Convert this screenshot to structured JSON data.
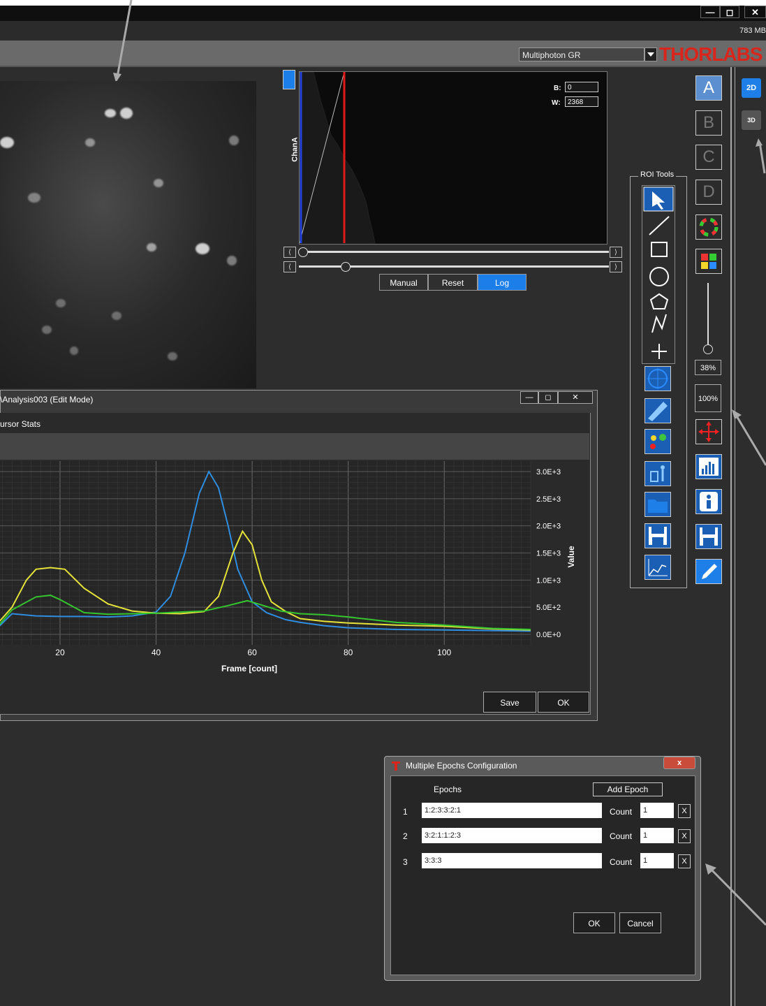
{
  "app": {
    "memory": "783 MB",
    "modality": "Multiphoton GR",
    "logo": "THORLABS",
    "window_controls": {
      "minimize": "—",
      "restore": "◻",
      "close": "✕"
    }
  },
  "histogram": {
    "channel_label": "ChanA",
    "black_label": "B:",
    "black_value": "0",
    "white_label": "W:",
    "white_value": "2368",
    "buttons": {
      "manual": "Manual",
      "reset": "Reset",
      "log": "Log"
    }
  },
  "roi_tools": {
    "title": "ROI Tools"
  },
  "channels": {
    "a": "A",
    "b": "B",
    "c": "C",
    "d": "D"
  },
  "zoom": {
    "slider_pct": "38%",
    "full_pct": "100%"
  },
  "view_modes": {
    "two_d": "2D",
    "three_d": "3D"
  },
  "analysis_window": {
    "title": "\\Analysis003  (Edit Mode)",
    "tab": "ursor Stats",
    "save": "Save",
    "ok": "OK",
    "controls": {
      "min": "—",
      "max": "◻",
      "close": "✕"
    }
  },
  "chart_data": {
    "type": "line",
    "xlabel": "Frame [count]",
    "ylabel": "Value",
    "x_ticks": [
      20,
      40,
      60,
      80,
      100
    ],
    "y_ticks": [
      "0.0E+0",
      "5.0E+2",
      "1.0E+3",
      "1.5E+3",
      "2.0E+3",
      "2.5E+3",
      "3.0E+3"
    ],
    "xlim": [
      7.5,
      118
    ],
    "ylim": [
      0,
      3000
    ],
    "series": [
      {
        "color": "#2f8de0",
        "points": [
          [
            7,
            120
          ],
          [
            10,
            380
          ],
          [
            15,
            340
          ],
          [
            20,
            330
          ],
          [
            25,
            330
          ],
          [
            30,
            320
          ],
          [
            35,
            340
          ],
          [
            40,
            410
          ],
          [
            43,
            700
          ],
          [
            46,
            1500
          ],
          [
            49,
            2600
          ],
          [
            51,
            3000
          ],
          [
            53,
            2700
          ],
          [
            55,
            2000
          ],
          [
            57,
            1200
          ],
          [
            60,
            600
          ],
          [
            63,
            400
          ],
          [
            67,
            270
          ],
          [
            70,
            220
          ],
          [
            75,
            160
          ],
          [
            80,
            120
          ],
          [
            90,
            90
          ],
          [
            100,
            80
          ],
          [
            110,
            70
          ],
          [
            118,
            60
          ]
        ]
      },
      {
        "color": "#e5e23a",
        "points": [
          [
            7,
            200
          ],
          [
            10,
            500
          ],
          [
            13,
            1000
          ],
          [
            15,
            1200
          ],
          [
            18,
            1230
          ],
          [
            21,
            1200
          ],
          [
            25,
            850
          ],
          [
            30,
            560
          ],
          [
            35,
            430
          ],
          [
            40,
            390
          ],
          [
            45,
            380
          ],
          [
            50,
            420
          ],
          [
            53,
            700
          ],
          [
            56,
            1500
          ],
          [
            58,
            1900
          ],
          [
            60,
            1650
          ],
          [
            62,
            1000
          ],
          [
            64,
            600
          ],
          [
            67,
            420
          ],
          [
            70,
            290
          ],
          [
            75,
            240
          ],
          [
            80,
            210
          ],
          [
            90,
            170
          ],
          [
            100,
            150
          ],
          [
            110,
            100
          ],
          [
            118,
            80
          ]
        ]
      },
      {
        "color": "#35c52f",
        "points": [
          [
            7,
            140
          ],
          [
            10,
            450
          ],
          [
            15,
            690
          ],
          [
            18,
            720
          ],
          [
            20,
            640
          ],
          [
            25,
            400
          ],
          [
            30,
            370
          ],
          [
            35,
            380
          ],
          [
            40,
            390
          ],
          [
            45,
            410
          ],
          [
            50,
            430
          ],
          [
            55,
            530
          ],
          [
            59,
            620
          ],
          [
            62,
            540
          ],
          [
            66,
            430
          ],
          [
            70,
            380
          ],
          [
            75,
            360
          ],
          [
            80,
            320
          ],
          [
            90,
            220
          ],
          [
            100,
            170
          ],
          [
            110,
            110
          ],
          [
            118,
            90
          ]
        ]
      }
    ]
  },
  "epochs_dialog": {
    "title": "Multiple Epochs Configuration",
    "col_header": "Epochs",
    "add_button": "Add Epoch",
    "count_label": "Count",
    "remove": "X",
    "rows": [
      {
        "index": "1",
        "epoch": "1:2:3:3:2:1",
        "count": "1"
      },
      {
        "index": "2",
        "epoch": "3:2:1:1:2:3",
        "count": "1"
      },
      {
        "index": "3",
        "epoch": "3:3:3",
        "count": "1"
      }
    ],
    "ok": "OK",
    "cancel": "Cancel",
    "close": "x"
  }
}
